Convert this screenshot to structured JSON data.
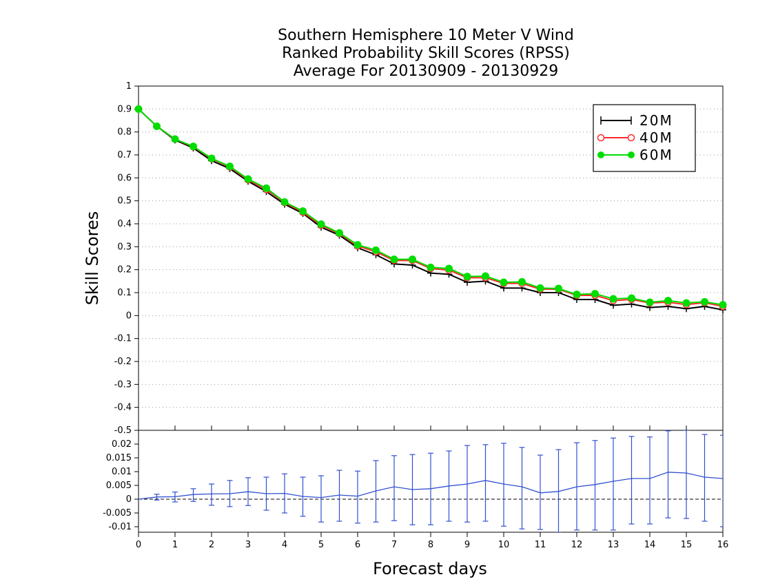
{
  "chart_data": {
    "type": "line",
    "title": [
      "Southern Hemisphere 10 Meter V Wind",
      "Ranked Probability Skill Scores (RPSS)",
      " Average For 20130909 - 20130929"
    ],
    "xlabel": "Forecast days",
    "ylabel": "Skill Scores",
    "xlim": [
      0,
      16
    ],
    "x_ticks": [
      "0",
      "1",
      "2",
      "3",
      "4",
      "5",
      "6",
      "7",
      "8",
      "9",
      "10",
      "11",
      "12",
      "13",
      "14",
      "15",
      "16"
    ],
    "upper_panel": {
      "ylim": [
        -0.5,
        1
      ],
      "y_ticks": [
        "1",
        "0.9",
        "0.8",
        "0.7",
        "0.6",
        "0.5",
        "0.4",
        "0.3",
        "0.2",
        "0.1",
        "0",
        "-0.1",
        "-0.2",
        "-0.3",
        "-0.4",
        "-0.5"
      ],
      "grid": "dotted horizontal",
      "legend_position": "top-right",
      "x": [
        0,
        0.5,
        1,
        1.5,
        2,
        2.5,
        3,
        3.5,
        4,
        4.5,
        5,
        5.5,
        6,
        6.5,
        7,
        7.5,
        8,
        8.5,
        9,
        9.5,
        10,
        10.5,
        11,
        11.5,
        12,
        12.5,
        13,
        13.5,
        14,
        14.5,
        15,
        15.5,
        16
      ],
      "series": [
        {
          "name": "20M",
          "color": "#000000",
          "marker": "plus",
          "values": [
            0.9,
            0.825,
            0.765,
            0.73,
            0.675,
            0.64,
            0.585,
            0.54,
            0.485,
            0.445,
            0.385,
            0.35,
            0.295,
            0.265,
            0.225,
            0.22,
            0.185,
            0.18,
            0.145,
            0.15,
            0.12,
            0.12,
            0.1,
            0.1,
            0.07,
            0.07,
            0.045,
            0.05,
            0.035,
            0.04,
            0.03,
            0.04,
            0.025
          ]
        },
        {
          "name": "40M",
          "color": "#ff2a2a",
          "marker": "open-circle",
          "values": [
            0.9,
            0.825,
            0.768,
            0.735,
            0.683,
            0.647,
            0.591,
            0.549,
            0.492,
            0.45,
            0.393,
            0.357,
            0.303,
            0.278,
            0.24,
            0.24,
            0.205,
            0.198,
            0.165,
            0.165,
            0.14,
            0.14,
            0.115,
            0.115,
            0.088,
            0.088,
            0.065,
            0.07,
            0.055,
            0.058,
            0.048,
            0.056,
            0.04
          ]
        },
        {
          "name": "60M",
          "color": "#00dd00",
          "marker": "filled-circle",
          "values": [
            0.9,
            0.825,
            0.769,
            0.737,
            0.685,
            0.65,
            0.595,
            0.555,
            0.495,
            0.455,
            0.398,
            0.36,
            0.308,
            0.285,
            0.245,
            0.245,
            0.21,
            0.205,
            0.17,
            0.172,
            0.145,
            0.147,
            0.12,
            0.118,
            0.092,
            0.095,
            0.073,
            0.076,
            0.058,
            0.065,
            0.055,
            0.06,
            0.047
          ]
        }
      ]
    },
    "lower_panel": {
      "ylim": [
        -0.012,
        0.025
      ],
      "y_ticks": [
        "0.02",
        "0.015",
        "0.01",
        "0.005",
        "0",
        "-0.005",
        "-0.01"
      ],
      "zero_line": "dashed",
      "color": "#3050d0",
      "x": [
        0,
        0.5,
        1,
        1.5,
        2,
        2.5,
        3,
        3.5,
        4,
        4.5,
        5,
        5.5,
        6,
        6.5,
        7,
        7.5,
        8,
        8.5,
        9,
        9.5,
        10,
        10.5,
        11,
        11.5,
        12,
        12.5,
        13,
        13.5,
        14,
        14.5,
        15,
        15.5,
        16
      ],
      "mean": [
        0,
        0.0008,
        0.0009,
        0.0017,
        0.0019,
        0.002,
        0.0027,
        0.002,
        0.0021,
        0.001,
        0.0006,
        0.0015,
        0.0011,
        0.003,
        0.0045,
        0.0035,
        0.0038,
        0.0048,
        0.0055,
        0.0068,
        0.0055,
        0.0045,
        0.0023,
        0.0028,
        0.0045,
        0.0053,
        0.0065,
        0.0075,
        0.0075,
        0.0098,
        0.0095,
        0.008,
        0.0075
      ],
      "upper": [
        0,
        0.0018,
        0.0026,
        0.0038,
        0.0055,
        0.0068,
        0.0078,
        0.008,
        0.0092,
        0.008,
        0.0085,
        0.0105,
        0.0102,
        0.014,
        0.0158,
        0.0162,
        0.0167,
        0.0175,
        0.0195,
        0.0198,
        0.0203,
        0.0188,
        0.016,
        0.018,
        0.0205,
        0.0213,
        0.0222,
        0.0228,
        0.0226,
        0.0248,
        0.025,
        0.0235,
        0.0232
      ],
      "lower": [
        0,
        -0.0003,
        -0.001,
        -0.0008,
        -0.0022,
        -0.0027,
        -0.0023,
        -0.004,
        -0.005,
        -0.0062,
        -0.0083,
        -0.008,
        -0.0087,
        -0.0083,
        -0.0078,
        -0.0093,
        -0.0093,
        -0.008,
        -0.0083,
        -0.008,
        -0.0098,
        -0.0108,
        -0.011,
        -0.012,
        -0.0112,
        -0.0112,
        -0.0112,
        -0.009,
        -0.009,
        -0.0068,
        -0.007,
        -0.008,
        -0.01
      ]
    }
  }
}
